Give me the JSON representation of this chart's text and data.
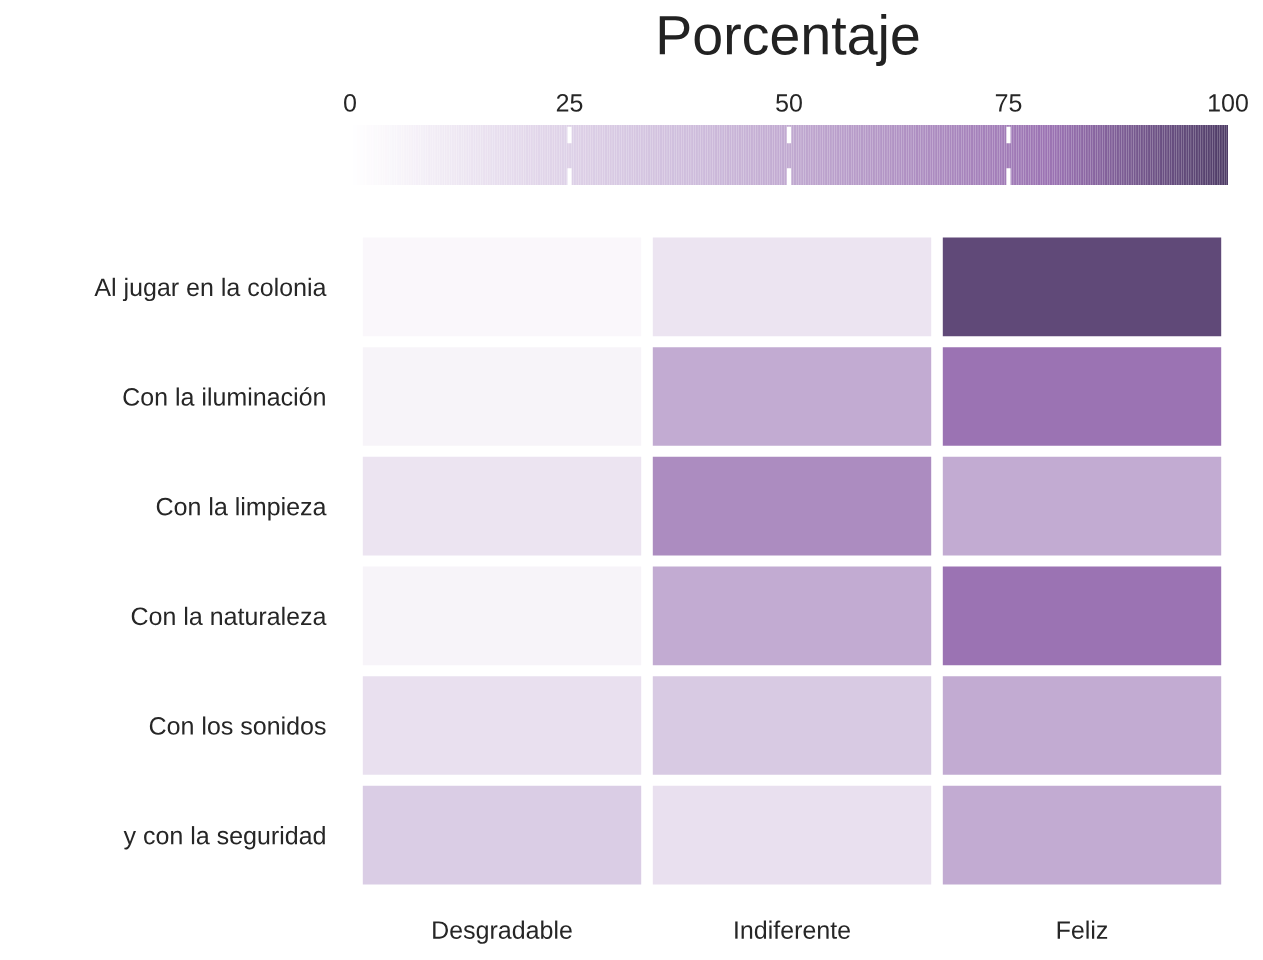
{
  "chart_data": {
    "type": "heatmap",
    "clabel": "Porcentaje",
    "categories": [
      "Desgradable",
      "Indiferente",
      "Feliz"
    ],
    "y_categories": [
      "Al jugar en la colonia",
      "Con la iluminación",
      "Con la limpieza",
      "Con la naturaleza",
      "Con los sonidos",
      "y con la seguridad"
    ],
    "cells": [
      [
        4,
        14,
        95
      ],
      [
        6,
        49,
        79
      ],
      [
        14,
        66,
        49
      ],
      [
        6,
        49,
        79
      ],
      [
        16,
        30,
        49
      ],
      [
        28,
        16,
        49
      ]
    ],
    "colors": [
      "#ffffff",
      "#e3d8eb",
      "#cdbbdb",
      "#b497c6",
      "#9a72b2",
      "#4e3c66"
    ],
    "clim": [
      0,
      100
    ],
    "cticks": [
      0,
      25,
      50,
      75,
      100
    ]
  }
}
